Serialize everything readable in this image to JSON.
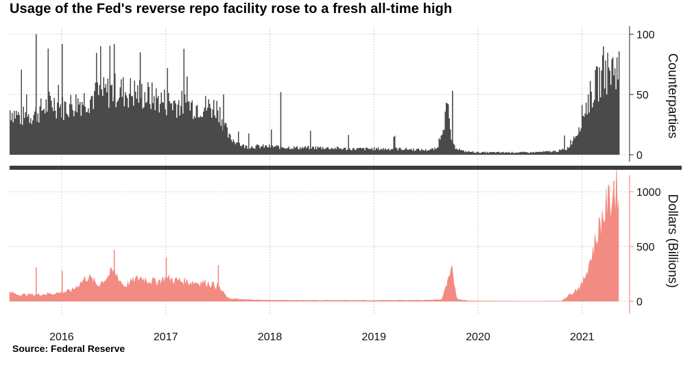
{
  "header": {
    "title": "Usage of the Fed's reverse repo facility rose to a fresh all-time high"
  },
  "footer": {
    "source": "Source: Federal Reserve"
  },
  "colors": {
    "top_series": "#4a4a4a",
    "bottom_series": "#f28b82",
    "bottom_axis": "#f28b82",
    "divider": "#3d3d3d",
    "grid": "#cfcfcf"
  },
  "chart_data": [
    {
      "type": "bar",
      "ylabel": "Counterparties",
      "ylim": [
        0,
        100
      ],
      "yticks": [
        0,
        50,
        100
      ],
      "x_range": [
        2015.5,
        2021.35
      ],
      "year_ticks": [
        "2016",
        "2017",
        "2018",
        "2019",
        "2020",
        "2021"
      ],
      "grid": true,
      "series": [
        {
          "x": [
            2015.5,
            2015.6,
            2015.75,
            2015.9,
            2016.0,
            2016.25,
            2016.5,
            2016.75,
            2017.0,
            2017.25,
            2017.5,
            2017.6,
            2017.75,
            2018.0,
            2018.25,
            2018.5,
            2018.75,
            2019.0,
            2019.25,
            2019.5,
            2019.6,
            2019.7,
            2019.75,
            2019.85,
            2020.0,
            2020.25,
            2020.5,
            2020.75,
            2020.85,
            2020.95,
            2021.0,
            2021.1,
            2021.2,
            2021.3,
            2021.35
          ],
          "values": [
            38,
            32,
            35,
            45,
            40,
            48,
            55,
            52,
            45,
            42,
            40,
            15,
            7,
            7,
            6,
            6,
            5,
            5,
            5,
            4,
            5,
            40,
            8,
            3,
            2,
            2,
            2,
            3,
            5,
            20,
            35,
            55,
            68,
            74,
            74
          ],
          "spikes": [
            {
              "x": 2015.75,
              "value": 100
            },
            {
              "x": 2016.0,
              "value": 92
            },
            {
              "x": 2016.5,
              "value": 92
            },
            {
              "x": 2016.75,
              "value": 85
            },
            {
              "x": 2017.2,
              "value": 65
            },
            {
              "x": 2017.55,
              "value": 50
            },
            {
              "x": 2018.1,
              "value": 52
            },
            {
              "x": 2019.75,
              "value": 53
            },
            {
              "x": 2021.2,
              "value": 90
            }
          ]
        }
      ]
    },
    {
      "type": "area",
      "ylabel": "Dollars (Billions)",
      "ylim": [
        0,
        1100
      ],
      "yticks": [
        0,
        500,
        1000
      ],
      "x_range": [
        2015.5,
        2021.35
      ],
      "year_ticks": [
        "2016",
        "2017",
        "2018",
        "2019",
        "2020",
        "2021"
      ],
      "grid": true,
      "series": [
        {
          "x": [
            2015.5,
            2015.6,
            2015.75,
            2015.9,
            2016.0,
            2016.1,
            2016.25,
            2016.35,
            2016.5,
            2016.6,
            2016.75,
            2016.9,
            2017.0,
            2017.2,
            2017.4,
            2017.5,
            2017.6,
            2017.75,
            2018.0,
            2018.5,
            2019.0,
            2019.5,
            2019.65,
            2019.75,
            2019.8,
            2019.9,
            2020.0,
            2020.5,
            2020.8,
            2021.0,
            2021.1,
            2021.2,
            2021.3,
            2021.35
          ],
          "values": [
            80,
            60,
            60,
            70,
            80,
            100,
            230,
            150,
            280,
            140,
            220,
            180,
            210,
            180,
            170,
            140,
            25,
            15,
            10,
            8,
            8,
            10,
            15,
            280,
            20,
            5,
            3,
            1,
            2,
            150,
            450,
            800,
            1000,
            1060
          ],
          "spikes": [
            {
              "x": 2015.75,
              "value": 310
            },
            {
              "x": 2016.0,
              "value": 280
            },
            {
              "x": 2016.5,
              "value": 470
            },
            {
              "x": 2017.0,
              "value": 400
            },
            {
              "x": 2017.5,
              "value": 330
            },
            {
              "x": 2021.3,
              "value": 1100
            }
          ]
        }
      ]
    }
  ]
}
